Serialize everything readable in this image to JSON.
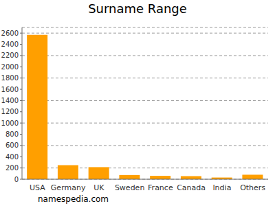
{
  "chart_data": {
    "type": "bar",
    "title": "Surname Range",
    "categories": [
      "USA",
      "Germany",
      "UK",
      "Sweden",
      "France",
      "Canada",
      "India",
      "Others"
    ],
    "values": [
      2570,
      250,
      215,
      75,
      60,
      55,
      30,
      80
    ],
    "color": "#ff9f00",
    "ylim": [
      0,
      2700
    ],
    "yticks": [
      0,
      200,
      400,
      600,
      800,
      1000,
      1200,
      1400,
      1600,
      1800,
      2000,
      2200,
      2400,
      2600
    ],
    "grid": true,
    "annotation": "namespedia.com"
  }
}
